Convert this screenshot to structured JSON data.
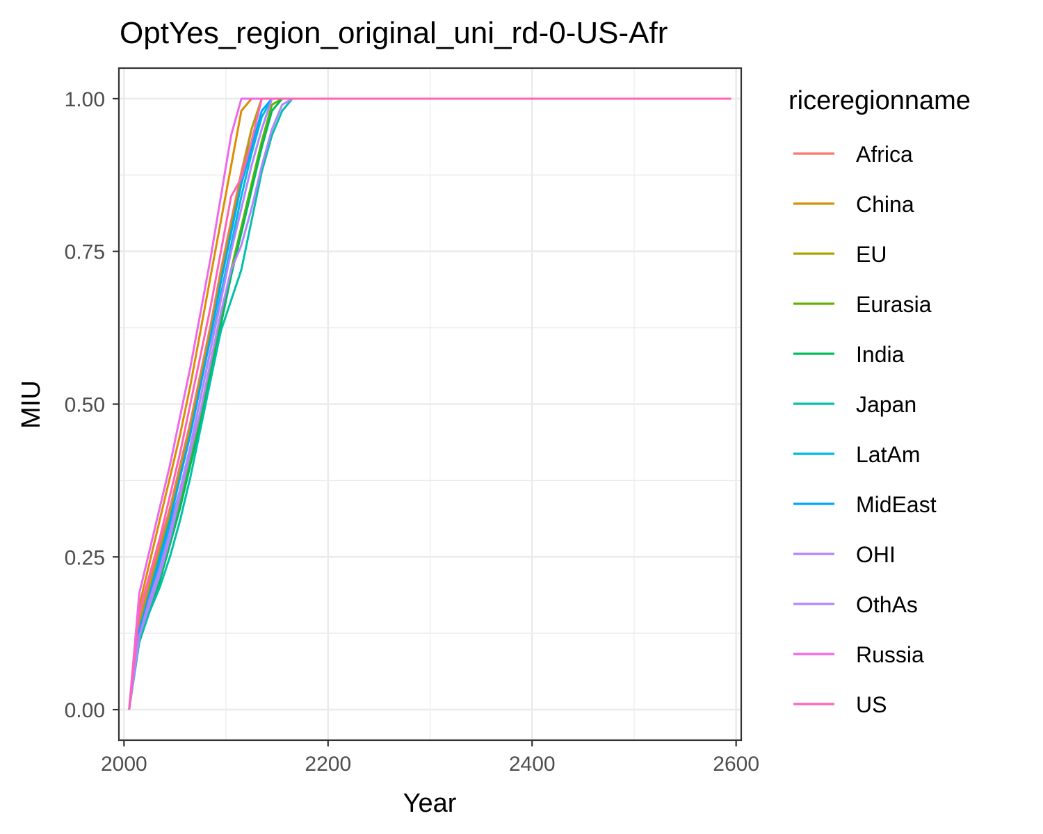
{
  "chart_data": {
    "type": "line",
    "title": "OptYes_region_original_uni_rd-0-US-Afr",
    "xlabel": "Year",
    "ylabel": "MIU",
    "xlim": [
      1995,
      2605
    ],
    "ylim": [
      -0.05,
      1.05
    ],
    "x_ticks": [
      2000,
      2200,
      2400,
      2600
    ],
    "x_tick_labels": [
      "2000",
      "2200",
      "2400",
      "2600"
    ],
    "y_ticks": [
      0,
      0.25,
      0.5,
      0.75,
      1.0
    ],
    "y_tick_labels": [
      "0.00",
      "0.25",
      "0.50",
      "0.75",
      "1.00"
    ],
    "grid": true,
    "legend": {
      "title": "riceregionname",
      "position": "right"
    },
    "series": [
      {
        "name": "Africa",
        "color": "#F8766D",
        "x": [
          2005,
          2015,
          2025,
          2035,
          2045,
          2055,
          2065,
          2075,
          2085,
          2095,
          2105,
          2115,
          2125,
          2135,
          2145,
          2155,
          2595
        ],
        "y": [
          0.0,
          0.15,
          0.21,
          0.27,
          0.33,
          0.4,
          0.47,
          0.55,
          0.63,
          0.72,
          0.8,
          0.88,
          0.95,
          1.0,
          1.0,
          1.0,
          1.0
        ]
      },
      {
        "name": "China",
        "color": "#DB8E00",
        "x": [
          2005,
          2015,
          2025,
          2035,
          2045,
          2055,
          2065,
          2075,
          2085,
          2095,
          2105,
          2115,
          2125,
          2135,
          2595
        ],
        "y": [
          0.0,
          0.17,
          0.24,
          0.31,
          0.38,
          0.45,
          0.53,
          0.62,
          0.71,
          0.8,
          0.89,
          0.98,
          1.0,
          1.0,
          1.0
        ]
      },
      {
        "name": "EU",
        "color": "#AEA200",
        "x": [
          2005,
          2015,
          2025,
          2035,
          2045,
          2055,
          2065,
          2075,
          2085,
          2095,
          2105,
          2115,
          2125,
          2135,
          2145,
          2155,
          2595
        ],
        "y": [
          0.0,
          0.14,
          0.2,
          0.26,
          0.32,
          0.39,
          0.46,
          0.54,
          0.62,
          0.71,
          0.79,
          0.87,
          0.95,
          1.0,
          1.0,
          1.0,
          1.0
        ]
      },
      {
        "name": "Eurasia",
        "color": "#64B200",
        "x": [
          2005,
          2015,
          2025,
          2035,
          2045,
          2055,
          2065,
          2075,
          2085,
          2095,
          2105,
          2115,
          2125,
          2135,
          2145,
          2155,
          2165,
          2595
        ],
        "y": [
          0.0,
          0.12,
          0.17,
          0.22,
          0.28,
          0.34,
          0.41,
          0.48,
          0.56,
          0.64,
          0.72,
          0.79,
          0.86,
          0.93,
          0.99,
          1.0,
          1.0,
          1.0
        ]
      },
      {
        "name": "India",
        "color": "#00BD5C",
        "x": [
          2005,
          2015,
          2025,
          2035,
          2045,
          2055,
          2065,
          2075,
          2085,
          2095,
          2105,
          2115,
          2125,
          2135,
          2145,
          2155,
          2165,
          2595
        ],
        "y": [
          0.0,
          0.12,
          0.16,
          0.21,
          0.27,
          0.33,
          0.4,
          0.47,
          0.55,
          0.63,
          0.71,
          0.78,
          0.85,
          0.92,
          0.98,
          1.0,
          1.0,
          1.0
        ]
      },
      {
        "name": "Japan",
        "color": "#00C1A7",
        "x": [
          2005,
          2015,
          2025,
          2035,
          2045,
          2055,
          2065,
          2075,
          2085,
          2095,
          2105,
          2115,
          2125,
          2135,
          2145,
          2155,
          2165,
          2595
        ],
        "y": [
          0.0,
          0.11,
          0.16,
          0.2,
          0.25,
          0.31,
          0.38,
          0.46,
          0.54,
          0.62,
          0.67,
          0.72,
          0.8,
          0.88,
          0.94,
          0.98,
          1.0,
          1.0
        ]
      },
      {
        "name": "LatAm",
        "color": "#00BADE",
        "x": [
          2005,
          2015,
          2025,
          2035,
          2045,
          2055,
          2065,
          2075,
          2085,
          2095,
          2105,
          2115,
          2125,
          2135,
          2145,
          2155,
          2595
        ],
        "y": [
          0.0,
          0.13,
          0.18,
          0.24,
          0.3,
          0.36,
          0.43,
          0.51,
          0.59,
          0.68,
          0.76,
          0.84,
          0.91,
          0.97,
          1.0,
          1.0,
          1.0
        ]
      },
      {
        "name": "MidEast",
        "color": "#00A6FF",
        "x": [
          2005,
          2015,
          2025,
          2035,
          2045,
          2055,
          2065,
          2075,
          2085,
          2095,
          2105,
          2115,
          2125,
          2135,
          2145,
          2155,
          2595
        ],
        "y": [
          0.0,
          0.13,
          0.19,
          0.25,
          0.31,
          0.38,
          0.45,
          0.53,
          0.61,
          0.7,
          0.78,
          0.86,
          0.92,
          0.98,
          1.0,
          1.0,
          1.0
        ]
      },
      {
        "name": "OHI",
        "color": "#B385FF",
        "x": [
          2005,
          2015,
          2025,
          2035,
          2045,
          2055,
          2065,
          2075,
          2085,
          2095,
          2105,
          2115,
          2125,
          2135,
          2145,
          2155,
          2595
        ],
        "y": [
          0.0,
          0.12,
          0.18,
          0.23,
          0.29,
          0.36,
          0.43,
          0.51,
          0.59,
          0.67,
          0.75,
          0.82,
          0.89,
          0.95,
          1.0,
          1.0,
          1.0
        ]
      },
      {
        "name": "OthAs",
        "color": "#B385FF",
        "x": [
          2005,
          2015,
          2025,
          2035,
          2045,
          2055,
          2065,
          2075,
          2085,
          2095,
          2105,
          2115,
          2125,
          2135,
          2145,
          2155,
          2165,
          2595
        ],
        "y": [
          0.0,
          0.12,
          0.17,
          0.22,
          0.28,
          0.35,
          0.42,
          0.49,
          0.57,
          0.65,
          0.72,
          0.76,
          0.82,
          0.89,
          0.95,
          0.99,
          1.0,
          1.0
        ]
      },
      {
        "name": "Russia",
        "color": "#EF67EB",
        "x": [
          2005,
          2015,
          2025,
          2035,
          2045,
          2055,
          2065,
          2075,
          2085,
          2095,
          2105,
          2115,
          2595
        ],
        "y": [
          0.0,
          0.19,
          0.26,
          0.33,
          0.4,
          0.48,
          0.56,
          0.65,
          0.74,
          0.84,
          0.94,
          1.0,
          1.0
        ]
      },
      {
        "name": "US",
        "color": "#FF63B6",
        "x": [
          2005,
          2015,
          2025,
          2035,
          2045,
          2055,
          2065,
          2075,
          2085,
          2095,
          2105,
          2115,
          2125,
          2135,
          2145,
          2595
        ],
        "y": [
          0.0,
          0.16,
          0.22,
          0.28,
          0.35,
          0.42,
          0.5,
          0.58,
          0.66,
          0.75,
          0.84,
          0.87,
          0.93,
          1.0,
          1.0,
          1.0
        ]
      }
    ]
  }
}
